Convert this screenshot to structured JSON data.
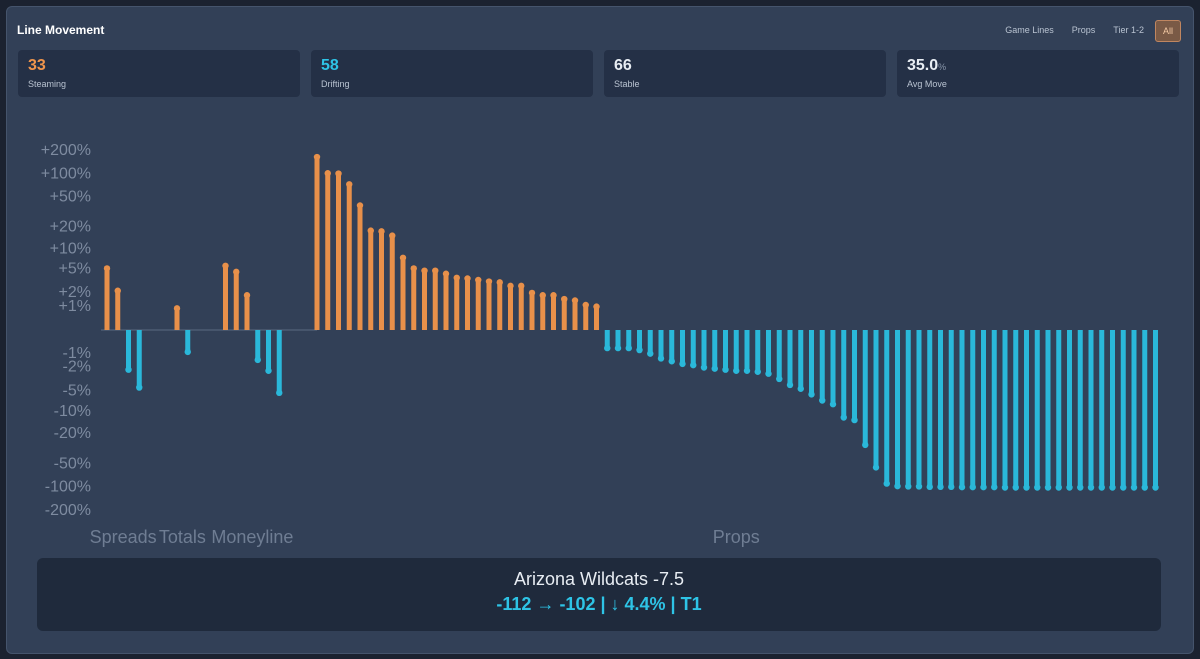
{
  "header": {
    "title": "Line Movement",
    "filters": [
      "Game Lines",
      "Props",
      "Tier 1-2",
      "All"
    ],
    "active_filter": "All"
  },
  "stats": [
    {
      "value": "33",
      "label": "Steaming",
      "color": "#f0954c"
    },
    {
      "value": "58",
      "label": "Drifting",
      "color": "#2ec4e6"
    },
    {
      "value": "66",
      "label": "Stable",
      "color": "#e8edf3"
    },
    {
      "value": "35.0",
      "unit": "%",
      "label": "Avg Move",
      "color": "#e8edf3"
    }
  ],
  "chart_data": {
    "type": "bar",
    "yscale": "symlog",
    "ylim": [
      -200,
      200
    ],
    "yticks": [
      {
        "value": 200,
        "label": "+200%"
      },
      {
        "value": 100,
        "label": "+100%"
      },
      {
        "value": 50,
        "label": "+50%"
      },
      {
        "value": 20,
        "label": "+20%"
      },
      {
        "value": 10,
        "label": "+10%"
      },
      {
        "value": 5,
        "label": "+5%"
      },
      {
        "value": 2,
        "label": "+2%"
      },
      {
        "value": 1,
        "label": "+1%"
      },
      {
        "value": -1,
        "label": "-1%"
      },
      {
        "value": -2,
        "label": "-2%"
      },
      {
        "value": -5,
        "label": "-5%"
      },
      {
        "value": -10,
        "label": "-10%"
      },
      {
        "value": -20,
        "label": "-20%"
      },
      {
        "value": -50,
        "label": "-50%"
      },
      {
        "value": -100,
        "label": "-100%"
      },
      {
        "value": -200,
        "label": "-200%"
      }
    ],
    "colors": {
      "up": "#e8904a",
      "down": "#2ab8da"
    },
    "groups": [
      {
        "name": "Spreads",
        "values": [
          5.2,
          2.2,
          -2.2,
          -4.4
        ]
      },
      {
        "name": "Totals",
        "values": [
          0.9,
          -0.9
        ]
      },
      {
        "name": "Moneyline",
        "values": [
          5.7,
          4.6,
          1.8,
          -1.4,
          -2.3,
          -5.3
        ]
      },
      {
        "name": "Props",
        "values": [
          167,
          103,
          102,
          74,
          39,
          18,
          17.6,
          15.4,
          7.5,
          5.2,
          4.8,
          4.8,
          4.3,
          3.7,
          3.6,
          3.4,
          3.2,
          3.1,
          2.7,
          2.7,
          2.0,
          1.8,
          1.8,
          1.5,
          1.4,
          1.1,
          1.0,
          -0.7,
          -0.7,
          -0.7,
          -0.8,
          -1.0,
          -1.3,
          -1.5,
          -1.7,
          -1.8,
          -2.0,
          -2.1,
          -2.2,
          -2.3,
          -2.3,
          -2.4,
          -2.6,
          -3.2,
          -4.0,
          -4.6,
          -5.6,
          -6.9,
          -7.8,
          -12,
          -13,
          -28,
          -55,
          -89,
          -96,
          -97,
          -97,
          -98,
          -98,
          -98,
          -99,
          -99,
          -99,
          -99,
          -100,
          -100,
          -100,
          -100,
          -100,
          -100,
          -100,
          -100,
          -100,
          -100,
          -100,
          -100,
          -100,
          -100,
          -100
        ]
      }
    ]
  },
  "detail": {
    "title": "Arizona Wildcats -7.5",
    "summary": "-112 → -102 | ↓ 4.4% | T1"
  }
}
